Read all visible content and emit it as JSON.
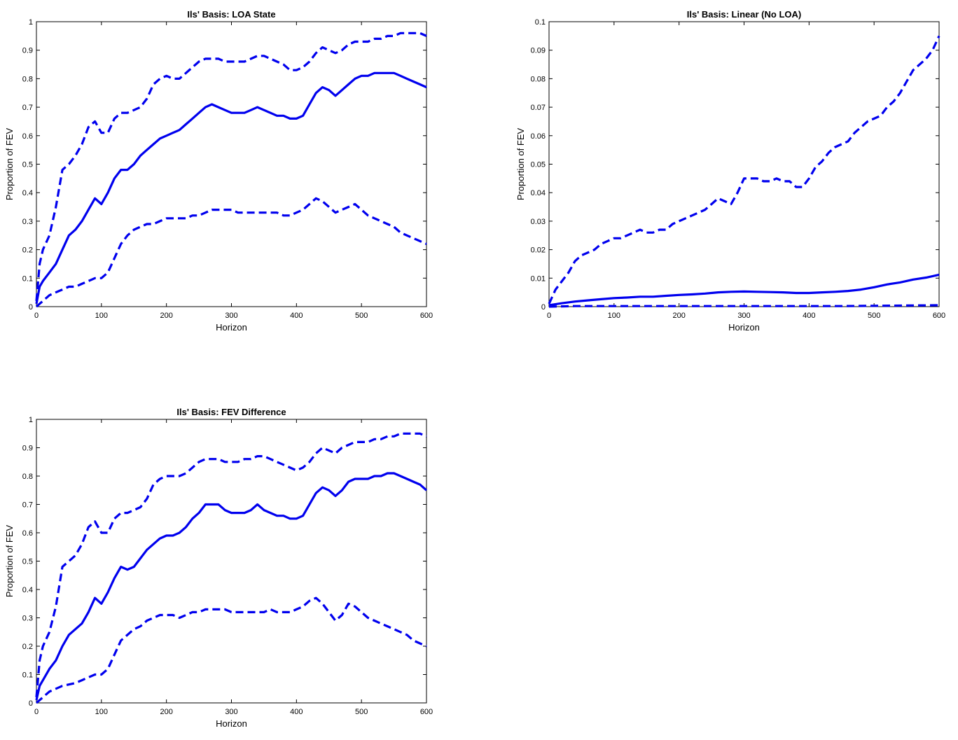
{
  "chart_data": [
    {
      "type": "line",
      "title": "Ils' Basis: LOA State",
      "xlabel": "Horizon",
      "ylabel": "Proportion of FEV",
      "xlim": [
        0,
        600
      ],
      "ylim": [
        0,
        1
      ],
      "xticks": [
        "0",
        "100",
        "200",
        "300",
        "400",
        "500",
        "600"
      ],
      "yticks": [
        "0",
        "0.1",
        "0.2",
        "0.3",
        "0.4",
        "0.5",
        "0.6",
        "0.7",
        "0.8",
        "0.9",
        "1"
      ],
      "color": "#0000ee",
      "series": [
        {
          "style": "solid",
          "x": [
            0,
            5,
            10,
            20,
            30,
            40,
            50,
            60,
            70,
            80,
            90,
            100,
            110,
            120,
            130,
            140,
            150,
            160,
            170,
            180,
            190,
            200,
            210,
            220,
            230,
            240,
            250,
            260,
            270,
            280,
            290,
            300,
            310,
            320,
            330,
            340,
            350,
            360,
            370,
            380,
            390,
            400,
            410,
            420,
            430,
            440,
            450,
            460,
            470,
            480,
            490,
            500,
            510,
            520,
            530,
            540,
            550,
            560,
            570,
            580,
            590,
            600
          ],
          "y": [
            0.01,
            0.07,
            0.09,
            0.12,
            0.15,
            0.2,
            0.25,
            0.27,
            0.3,
            0.34,
            0.38,
            0.36,
            0.4,
            0.45,
            0.48,
            0.48,
            0.5,
            0.53,
            0.55,
            0.57,
            0.59,
            0.6,
            0.61,
            0.62,
            0.64,
            0.66,
            0.68,
            0.7,
            0.71,
            0.7,
            0.69,
            0.68,
            0.68,
            0.68,
            0.69,
            0.7,
            0.69,
            0.68,
            0.67,
            0.67,
            0.66,
            0.66,
            0.67,
            0.71,
            0.75,
            0.77,
            0.76,
            0.74,
            0.76,
            0.78,
            0.8,
            0.81,
            0.81,
            0.82,
            0.82,
            0.82,
            0.82,
            0.81,
            0.8,
            0.79,
            0.78,
            0.77
          ]
        },
        {
          "style": "dashed",
          "x": [
            0,
            5,
            10,
            20,
            30,
            40,
            50,
            60,
            70,
            80,
            90,
            100,
            110,
            120,
            130,
            140,
            150,
            160,
            170,
            180,
            190,
            200,
            210,
            220,
            230,
            240,
            250,
            260,
            270,
            280,
            290,
            300,
            310,
            320,
            330,
            340,
            350,
            360,
            370,
            380,
            390,
            400,
            410,
            420,
            430,
            440,
            450,
            460,
            470,
            480,
            490,
            500,
            510,
            520,
            530,
            540,
            550,
            560,
            570,
            580,
            590,
            600
          ],
          "y": [
            0.02,
            0.15,
            0.2,
            0.25,
            0.35,
            0.48,
            0.5,
            0.53,
            0.57,
            0.63,
            0.65,
            0.61,
            0.61,
            0.66,
            0.68,
            0.68,
            0.69,
            0.7,
            0.73,
            0.78,
            0.8,
            0.81,
            0.8,
            0.8,
            0.82,
            0.84,
            0.86,
            0.87,
            0.87,
            0.87,
            0.86,
            0.86,
            0.86,
            0.86,
            0.87,
            0.88,
            0.88,
            0.87,
            0.86,
            0.85,
            0.83,
            0.83,
            0.84,
            0.86,
            0.89,
            0.91,
            0.9,
            0.89,
            0.9,
            0.92,
            0.93,
            0.93,
            0.93,
            0.94,
            0.94,
            0.95,
            0.95,
            0.96,
            0.96,
            0.96,
            0.96,
            0.95
          ]
        },
        {
          "style": "dashed",
          "x": [
            0,
            5,
            10,
            20,
            30,
            40,
            50,
            60,
            70,
            80,
            90,
            100,
            110,
            120,
            130,
            140,
            150,
            160,
            170,
            180,
            190,
            200,
            210,
            220,
            230,
            240,
            250,
            260,
            270,
            280,
            290,
            300,
            310,
            320,
            330,
            340,
            350,
            360,
            370,
            380,
            390,
            400,
            410,
            420,
            430,
            440,
            450,
            460,
            470,
            480,
            490,
            500,
            510,
            520,
            530,
            540,
            550,
            560,
            570,
            580,
            590,
            600
          ],
          "y": [
            0.0,
            0.01,
            0.02,
            0.04,
            0.05,
            0.06,
            0.07,
            0.07,
            0.08,
            0.09,
            0.1,
            0.1,
            0.12,
            0.17,
            0.22,
            0.25,
            0.27,
            0.28,
            0.29,
            0.29,
            0.3,
            0.31,
            0.31,
            0.31,
            0.31,
            0.32,
            0.32,
            0.33,
            0.34,
            0.34,
            0.34,
            0.34,
            0.33,
            0.33,
            0.33,
            0.33,
            0.33,
            0.33,
            0.33,
            0.32,
            0.32,
            0.33,
            0.34,
            0.36,
            0.38,
            0.37,
            0.35,
            0.33,
            0.34,
            0.35,
            0.36,
            0.34,
            0.32,
            0.31,
            0.3,
            0.29,
            0.28,
            0.26,
            0.25,
            0.24,
            0.23,
            0.22
          ]
        }
      ]
    },
    {
      "type": "line",
      "title": "Ils' Basis: Linear (No LOA)",
      "xlabel": "Horizon",
      "ylabel": "Proportion of FEV",
      "xlim": [
        0,
        600
      ],
      "ylim": [
        0,
        0.1
      ],
      "xticks": [
        "0",
        "100",
        "200",
        "300",
        "400",
        "500",
        "600"
      ],
      "yticks": [
        "0",
        "0.01",
        "0.02",
        "0.03",
        "0.04",
        "0.05",
        "0.06",
        "0.07",
        "0.08",
        "0.09",
        "0.1"
      ],
      "color": "#0000ee",
      "series": [
        {
          "style": "solid",
          "x": [
            0,
            20,
            40,
            60,
            80,
            100,
            120,
            140,
            160,
            180,
            200,
            220,
            240,
            260,
            280,
            300,
            320,
            340,
            360,
            380,
            400,
            420,
            440,
            460,
            480,
            500,
            520,
            540,
            560,
            580,
            600
          ],
          "y": [
            0.0005,
            0.0012,
            0.0018,
            0.0022,
            0.0026,
            0.003,
            0.0032,
            0.0035,
            0.0035,
            0.0038,
            0.0041,
            0.0043,
            0.0046,
            0.005,
            0.0052,
            0.0053,
            0.0052,
            0.0051,
            0.005,
            0.0048,
            0.0048,
            0.005,
            0.0052,
            0.0055,
            0.006,
            0.0068,
            0.0078,
            0.0085,
            0.0095,
            0.0102,
            0.0112
          ]
        },
        {
          "style": "dashed",
          "x": [
            0,
            10,
            20,
            30,
            40,
            50,
            60,
            70,
            80,
            90,
            100,
            110,
            120,
            130,
            140,
            150,
            160,
            170,
            180,
            190,
            200,
            210,
            220,
            230,
            240,
            250,
            260,
            270,
            280,
            290,
            300,
            310,
            320,
            330,
            340,
            350,
            360,
            370,
            380,
            390,
            400,
            410,
            420,
            430,
            440,
            450,
            460,
            470,
            480,
            490,
            500,
            510,
            520,
            530,
            540,
            550,
            560,
            570,
            580,
            590,
            600
          ],
          "y": [
            0.001,
            0.006,
            0.009,
            0.012,
            0.016,
            0.018,
            0.019,
            0.02,
            0.022,
            0.023,
            0.024,
            0.024,
            0.025,
            0.026,
            0.027,
            0.026,
            0.026,
            0.027,
            0.027,
            0.029,
            0.03,
            0.031,
            0.032,
            0.033,
            0.034,
            0.036,
            0.038,
            0.037,
            0.036,
            0.04,
            0.045,
            0.045,
            0.045,
            0.044,
            0.044,
            0.045,
            0.044,
            0.044,
            0.042,
            0.042,
            0.045,
            0.049,
            0.051,
            0.054,
            0.056,
            0.057,
            0.058,
            0.061,
            0.063,
            0.065,
            0.066,
            0.067,
            0.07,
            0.072,
            0.075,
            0.079,
            0.083,
            0.085,
            0.087,
            0.09,
            0.095
          ]
        },
        {
          "style": "dashed",
          "x": [
            0,
            20,
            40,
            60,
            80,
            100,
            150,
            200,
            250,
            300,
            350,
            400,
            450,
            500,
            550,
            600
          ],
          "y": [
            0.0,
            0.0001,
            0.0002,
            0.0002,
            0.0002,
            0.0002,
            0.0002,
            0.0002,
            0.0002,
            0.0002,
            0.0002,
            0.0002,
            0.0002,
            0.0003,
            0.0004,
            0.0005
          ]
        }
      ]
    },
    {
      "type": "line",
      "title": "Ils' Basis: FEV Difference",
      "xlabel": "Horizon",
      "ylabel": "Proportion of FEV",
      "xlim": [
        0,
        600
      ],
      "ylim": [
        0,
        1
      ],
      "xticks": [
        "0",
        "100",
        "200",
        "300",
        "400",
        "500",
        "600"
      ],
      "yticks": [
        "0",
        "0.1",
        "0.2",
        "0.3",
        "0.4",
        "0.5",
        "0.6",
        "0.7",
        "0.8",
        "0.9",
        "1"
      ],
      "color": "#0000ee",
      "series": [
        {
          "style": "solid",
          "x": [
            0,
            5,
            10,
            20,
            30,
            40,
            50,
            60,
            70,
            80,
            90,
            100,
            110,
            120,
            130,
            140,
            150,
            160,
            170,
            180,
            190,
            200,
            210,
            220,
            230,
            240,
            250,
            260,
            270,
            280,
            290,
            300,
            310,
            320,
            330,
            340,
            350,
            360,
            370,
            380,
            390,
            400,
            410,
            420,
            430,
            440,
            450,
            460,
            470,
            480,
            490,
            500,
            510,
            520,
            530,
            540,
            550,
            560,
            570,
            580,
            590,
            600
          ],
          "y": [
            0.01,
            0.06,
            0.08,
            0.12,
            0.15,
            0.2,
            0.24,
            0.26,
            0.28,
            0.32,
            0.37,
            0.35,
            0.39,
            0.44,
            0.48,
            0.47,
            0.48,
            0.51,
            0.54,
            0.56,
            0.58,
            0.59,
            0.59,
            0.6,
            0.62,
            0.65,
            0.67,
            0.7,
            0.7,
            0.7,
            0.68,
            0.67,
            0.67,
            0.67,
            0.68,
            0.7,
            0.68,
            0.67,
            0.66,
            0.66,
            0.65,
            0.65,
            0.66,
            0.7,
            0.74,
            0.76,
            0.75,
            0.73,
            0.75,
            0.78,
            0.79,
            0.79,
            0.79,
            0.8,
            0.8,
            0.81,
            0.81,
            0.8,
            0.79,
            0.78,
            0.77,
            0.75
          ]
        },
        {
          "style": "dashed",
          "x": [
            0,
            5,
            10,
            20,
            30,
            40,
            50,
            60,
            70,
            80,
            90,
            100,
            110,
            120,
            130,
            140,
            150,
            160,
            170,
            180,
            190,
            200,
            210,
            220,
            230,
            240,
            250,
            260,
            270,
            280,
            290,
            300,
            310,
            320,
            330,
            340,
            350,
            360,
            370,
            380,
            390,
            400,
            410,
            420,
            430,
            440,
            450,
            460,
            470,
            480,
            490,
            500,
            510,
            520,
            530,
            540,
            550,
            560,
            570,
            580,
            590,
            600
          ],
          "y": [
            0.02,
            0.15,
            0.2,
            0.25,
            0.34,
            0.48,
            0.5,
            0.52,
            0.56,
            0.62,
            0.64,
            0.6,
            0.6,
            0.65,
            0.67,
            0.67,
            0.68,
            0.69,
            0.72,
            0.77,
            0.79,
            0.8,
            0.8,
            0.8,
            0.81,
            0.83,
            0.85,
            0.86,
            0.86,
            0.86,
            0.85,
            0.85,
            0.85,
            0.86,
            0.86,
            0.87,
            0.87,
            0.86,
            0.85,
            0.84,
            0.83,
            0.82,
            0.83,
            0.85,
            0.88,
            0.9,
            0.89,
            0.88,
            0.9,
            0.91,
            0.92,
            0.92,
            0.92,
            0.93,
            0.93,
            0.94,
            0.94,
            0.95,
            0.95,
            0.95,
            0.95,
            0.94
          ]
        },
        {
          "style": "dashed",
          "x": [
            0,
            5,
            10,
            20,
            30,
            40,
            50,
            60,
            70,
            80,
            90,
            100,
            110,
            120,
            130,
            140,
            150,
            160,
            170,
            180,
            190,
            200,
            210,
            220,
            230,
            240,
            250,
            260,
            270,
            280,
            290,
            300,
            310,
            320,
            330,
            340,
            350,
            360,
            370,
            380,
            390,
            400,
            410,
            420,
            430,
            440,
            450,
            460,
            470,
            480,
            490,
            500,
            510,
            520,
            530,
            540,
            550,
            560,
            570,
            580,
            590,
            600
          ],
          "y": [
            0.0,
            0.01,
            0.02,
            0.04,
            0.05,
            0.06,
            0.065,
            0.07,
            0.08,
            0.09,
            0.1,
            0.1,
            0.12,
            0.17,
            0.22,
            0.24,
            0.26,
            0.27,
            0.29,
            0.3,
            0.31,
            0.31,
            0.31,
            0.3,
            0.31,
            0.32,
            0.32,
            0.33,
            0.33,
            0.33,
            0.33,
            0.32,
            0.32,
            0.32,
            0.32,
            0.32,
            0.32,
            0.33,
            0.32,
            0.32,
            0.32,
            0.33,
            0.34,
            0.36,
            0.37,
            0.35,
            0.32,
            0.29,
            0.31,
            0.35,
            0.34,
            0.32,
            0.3,
            0.29,
            0.28,
            0.27,
            0.26,
            0.25,
            0.24,
            0.22,
            0.21,
            0.2
          ]
        }
      ]
    }
  ]
}
